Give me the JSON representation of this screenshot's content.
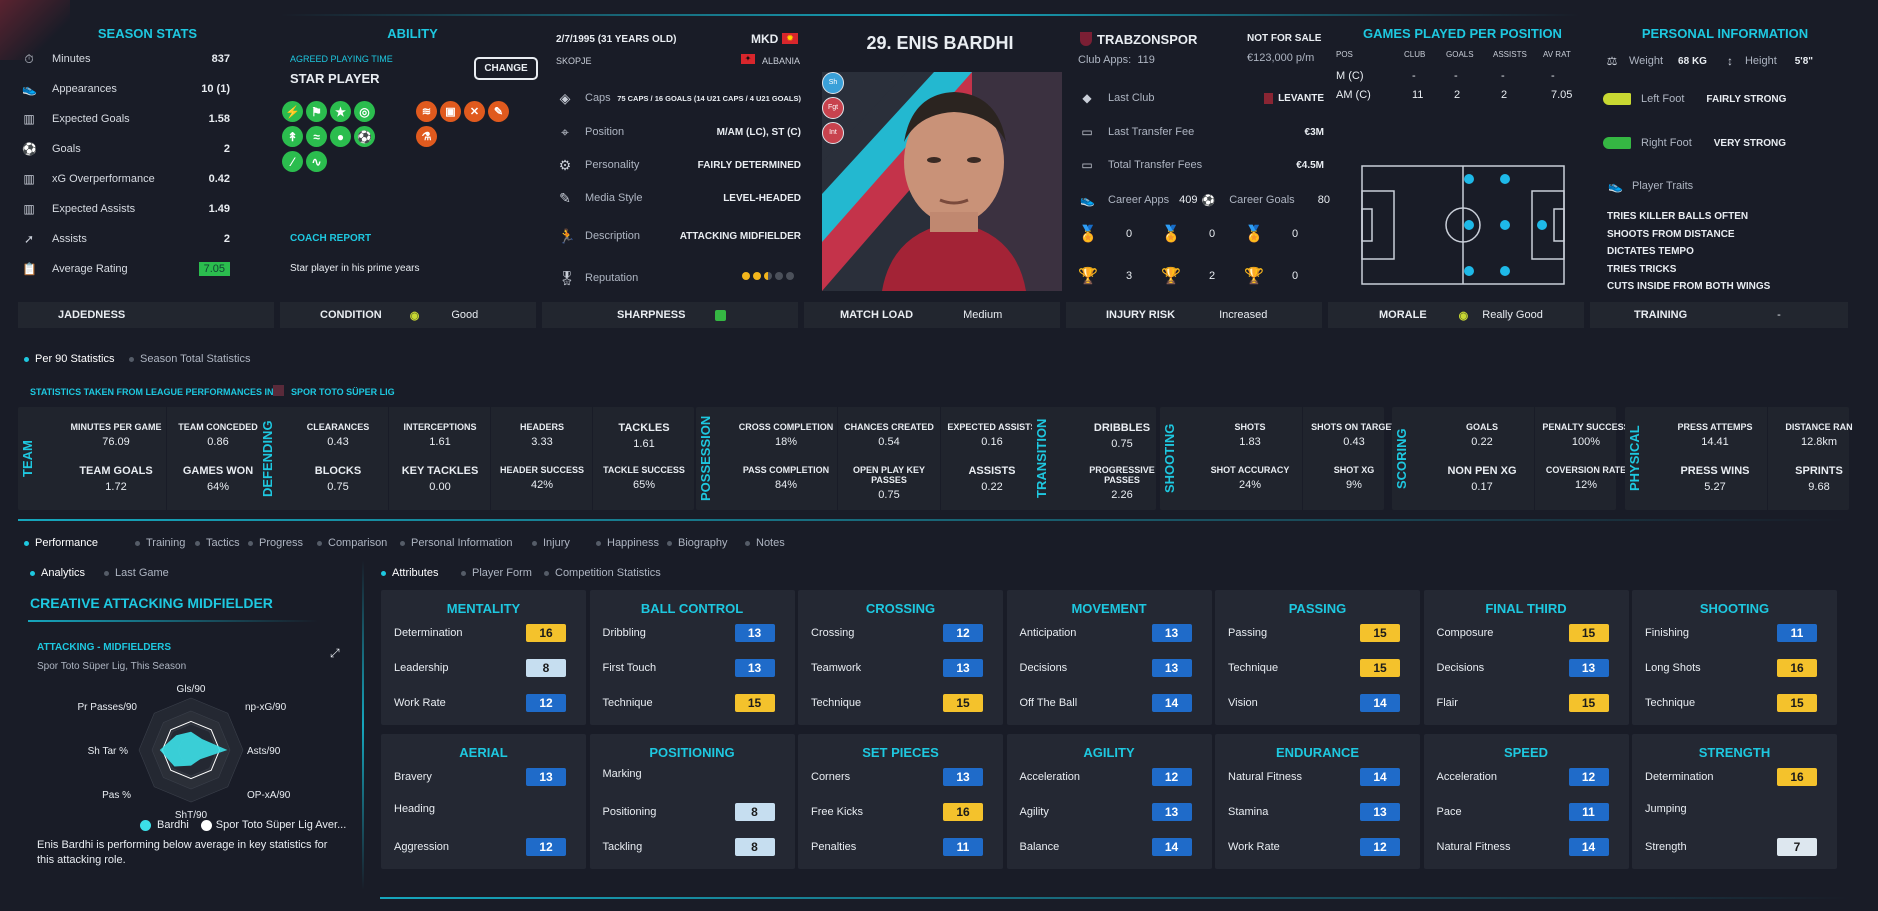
{
  "season_stats": {
    "title": "SEASON STATS",
    "rows": [
      {
        "label": "Minutes",
        "value": "837",
        "icon": "stopwatch-icon"
      },
      {
        "label": "Appearances",
        "value": "10 (1)",
        "icon": "boot-icon"
      },
      {
        "label": "Expected Goals",
        "value": "1.58",
        "icon": "chart-icon"
      },
      {
        "label": "Goals",
        "value": "2",
        "icon": "ball-icon"
      },
      {
        "label": "xG Overperformance",
        "value": "0.42",
        "icon": "chart-icon"
      },
      {
        "label": "Expected Assists",
        "value": "1.49",
        "icon": "chart-icon"
      },
      {
        "label": "Assists",
        "value": "2",
        "icon": "assist-icon"
      },
      {
        "label": "Average Rating",
        "value": "7.05",
        "icon": "clipboard-icon"
      }
    ]
  },
  "ability": {
    "title": "ABILITY",
    "agreed_label": "AGREED PLAYING TIME",
    "playing_time": "STAR PLAYER",
    "change": "CHANGE",
    "coach_report_title": "COACH REPORT",
    "coach_report": "Star player in his prime years"
  },
  "bio": {
    "dob": "2/7/1995 (31 YEARS OLD)",
    "nation": "MKD",
    "city": "SKOPJE",
    "second_nation": "ALBANIA",
    "rows": [
      {
        "label": "Caps",
        "value": "75 CAPS / 16 GOALS (14 U21 CAPS / 4 U21 GOALS)",
        "icon": "caps-icon"
      },
      {
        "label": "Position",
        "value": "M/AM (LC), ST (C)",
        "icon": "position-icon"
      },
      {
        "label": "Personality",
        "value": "FAIRLY DETERMINED",
        "icon": "personality-icon"
      },
      {
        "label": "Media Style",
        "value": "LEVEL-HEADED",
        "icon": "media-icon"
      },
      {
        "label": "Description",
        "value": "ATTACKING MIDFIELDER",
        "icon": "runner-icon"
      },
      {
        "label": "Reputation",
        "value": "",
        "icon": "ribbon-icon"
      }
    ],
    "reputation_stars": 2.5,
    "reputation_max": 5
  },
  "player": {
    "name": "29. ENIS BARDHI",
    "roles": [
      "Sh",
      "Fgt",
      "Int"
    ]
  },
  "club": {
    "name": "TRABZONSPOR",
    "apps_label": "Club Apps:",
    "apps": "119",
    "status": "NOT FOR SALE",
    "value": "€123,000 p/m",
    "rows": [
      {
        "label": "Last Club",
        "value": "LEVANTE"
      },
      {
        "label": "Last Transfer Fee",
        "value": "€3M"
      },
      {
        "label": "Total Transfer Fees",
        "value": "€4.5M"
      }
    ],
    "career_apps_label": "Career Apps",
    "career_apps": "409",
    "career_goals_label": "Career Goals",
    "career_goals": "80",
    "medals": [
      "0",
      "0",
      "0"
    ],
    "trophies": [
      "3",
      "2",
      "0"
    ]
  },
  "games_per_position": {
    "title": "GAMES PLAYED PER POSITION",
    "headers": [
      "POS",
      "CLUB",
      "GOALS",
      "ASSISTS",
      "AV RAT"
    ],
    "rows": [
      [
        "M (C)",
        "-",
        "-",
        "-",
        "-"
      ],
      [
        "AM (C)",
        "11",
        "2",
        "2",
        "7.05"
      ]
    ]
  },
  "personal": {
    "title": "PERSONAL INFORMATION",
    "weight_label": "Weight",
    "weight": "68 KG",
    "height_label": "Height",
    "height": "5'8\"",
    "left_foot_label": "Left Foot",
    "left_foot": "FAIRLY STRONG",
    "right_foot_label": "Right Foot",
    "right_foot": "VERY STRONG",
    "traits_title": "Player Traits",
    "traits": [
      "TRIES KILLER BALLS OFTEN",
      "SHOOTS FROM DISTANCE",
      "DICTATES TEMPO",
      "TRIES TRICKS",
      "CUTS INSIDE FROM BOTH WINGS"
    ]
  },
  "status_bar": {
    "jadedness": "JADEDNESS",
    "condition": "CONDITION",
    "condition_val": "Good",
    "sharpness": "SHARPNESS",
    "match_load": "MATCH LOAD",
    "match_load_val": "Medium",
    "injury_risk": "INJURY RISK",
    "injury_risk_val": "Increased",
    "morale": "MORALE",
    "morale_val": "Really Good",
    "training": "TRAINING",
    "training_val": "-"
  },
  "stats_toggle": {
    "per90": "Per 90 Statistics",
    "season": "Season Total Statistics",
    "note": "STATISTICS TAKEN FROM LEAGUE PERFORMANCES IN:",
    "league": "SPOR TOTO SÜPER LIG"
  },
  "stat_groups": {
    "team": {
      "label": "TEAM",
      "cells": [
        {
          "l": "MINUTES PER GAME",
          "v": "76.09"
        },
        {
          "l": "TEAM CONCEDED",
          "v": "0.86"
        },
        {
          "l": "TEAM GOALS",
          "v": "1.72"
        },
        {
          "l": "GAMES WON",
          "v": "64%"
        }
      ]
    },
    "defending": {
      "label": "DEFENDING",
      "cells": [
        {
          "l": "CLEARANCES",
          "v": "0.43"
        },
        {
          "l": "INTERCEPTIONS",
          "v": "1.61"
        },
        {
          "l": "HEADERS",
          "v": "3.33"
        },
        {
          "l": "TACKLES",
          "v": "1.61"
        },
        {
          "l": "BLOCKS",
          "v": "0.75"
        },
        {
          "l": "KEY TACKLES",
          "v": "0.00"
        },
        {
          "l": "HEADER SUCCESS",
          "v": "42%"
        },
        {
          "l": "TACKLE SUCCESS",
          "v": "65%"
        }
      ]
    },
    "possession": {
      "label": "POSSESSION",
      "cells": [
        {
          "l": "CROSS COMPLETION",
          "v": "18%"
        },
        {
          "l": "CHANCES CREATED",
          "v": "0.54"
        },
        {
          "l": "EXPECTED ASSISTS",
          "v": "0.16"
        },
        {
          "l": "PASS COMPLETION",
          "v": "84%"
        },
        {
          "l": "OPEN PLAY KEY PASSES",
          "v": "0.75"
        },
        {
          "l": "ASSISTS",
          "v": "0.22"
        }
      ]
    },
    "transition": {
      "label": "TRANSITION",
      "cells": [
        {
          "l": "DRIBBLES",
          "v": "0.75"
        },
        {
          "l": "PROGRESSIVE PASSES",
          "v": "2.26"
        }
      ]
    },
    "shooting": {
      "label": "SHOOTING",
      "cells": [
        {
          "l": "SHOTS",
          "v": "1.83"
        },
        {
          "l": "SHOTS ON TARGET",
          "v": "0.43"
        },
        {
          "l": "SHOT ACCURACY",
          "v": "24%"
        },
        {
          "l": "SHOT XG",
          "v": "9%"
        }
      ]
    },
    "scoring": {
      "label": "SCORING",
      "cells": [
        {
          "l": "GOALS",
          "v": "0.22"
        },
        {
          "l": "PENALTY SUCCESS",
          "v": "100%"
        },
        {
          "l": "NON PEN XG",
          "v": "0.17"
        },
        {
          "l": "COVERSION RATE",
          "v": "12%"
        }
      ]
    },
    "physical": {
      "label": "PHYSICAL",
      "cells": [
        {
          "l": "PRESS ATTEMPS",
          "v": "14.41"
        },
        {
          "l": "DISTANCE RAN",
          "v": "12.8km"
        },
        {
          "l": "PRESS WINS",
          "v": "5.27"
        },
        {
          "l": "SPRINTS",
          "v": "9.68"
        }
      ]
    }
  },
  "tabs": [
    "Performance",
    "Training",
    "Tactics",
    "Progress",
    "Comparison",
    "Personal Information",
    "Injury",
    "Happiness",
    "Biography",
    "Notes"
  ],
  "subtabs_left": [
    "Analytics",
    "Last Game"
  ],
  "subtabs_right": [
    "Attributes",
    "Player Form",
    "Competition Statistics"
  ],
  "analytics": {
    "role": "CREATIVE ATTACKING MIDFIELDER",
    "group": "ATTACKING - MIDFIELDERS",
    "context": "Spor Toto Süper Lig, This Season",
    "axes": [
      "Gls/90",
      "np-xG/90",
      "Asts/90",
      "OP-xA/90",
      "ShT/90",
      "Pas %",
      "Sh Tar %",
      "Pr Passes/90"
    ],
    "legend_player": "Bardhi",
    "legend_avg": "Spor Toto Süper Lig Aver...",
    "summary": "Enis Bardhi is performing below average in key statistics for this attacking role."
  },
  "attributes": [
    {
      "title": "MENTALITY",
      "rows": [
        [
          "Determination",
          "16",
          "gold"
        ],
        [
          "Leadership",
          "8",
          "light"
        ],
        [
          "Work Rate",
          "12",
          "blue"
        ]
      ]
    },
    {
      "title": "BALL CONTROL",
      "rows": [
        [
          "Dribbling",
          "13",
          "blue"
        ],
        [
          "First Touch",
          "13",
          "blue"
        ],
        [
          "Technique",
          "15",
          "gold"
        ]
      ]
    },
    {
      "title": "CROSSING",
      "rows": [
        [
          "Crossing",
          "12",
          "blue"
        ],
        [
          "Teamwork",
          "13",
          "blue"
        ],
        [
          "Technique",
          "15",
          "gold"
        ]
      ]
    },
    {
      "title": "MOVEMENT",
      "rows": [
        [
          "Anticipation",
          "13",
          "blue"
        ],
        [
          "Decisions",
          "13",
          "blue"
        ],
        [
          "Off The Ball",
          "14",
          "blue"
        ]
      ]
    },
    {
      "title": "PASSING",
      "rows": [
        [
          "Passing",
          "15",
          "gold"
        ],
        [
          "Technique",
          "15",
          "gold"
        ],
        [
          "Vision",
          "14",
          "blue"
        ]
      ]
    },
    {
      "title": "FINAL THIRD",
      "rows": [
        [
          "Composure",
          "15",
          "gold"
        ],
        [
          "Decisions",
          "13",
          "blue"
        ],
        [
          "Flair",
          "15",
          "gold"
        ]
      ]
    },
    {
      "title": "SHOOTING",
      "rows": [
        [
          "Finishing",
          "11",
          "blue"
        ],
        [
          "Long Shots",
          "16",
          "gold"
        ],
        [
          "Technique",
          "15",
          "gold"
        ]
      ]
    },
    {
      "title": "AERIAL",
      "rows": [
        [
          "Bravery",
          "13",
          "blue"
        ],
        [
          "Heading",
          "",
          ""
        ],
        [
          "Aggression",
          "12",
          "blue"
        ]
      ]
    },
    {
      "title": "POSITIONING",
      "rows": [
        [
          "Marking",
          "",
          ""
        ],
        [
          "Positioning",
          "8",
          "light"
        ],
        [
          "Tackling",
          "8",
          "light"
        ]
      ]
    },
    {
      "title": "SET PIECES",
      "rows": [
        [
          "Corners",
          "13",
          "blue"
        ],
        [
          "Free Kicks",
          "16",
          "gold"
        ],
        [
          "Penalties",
          "11",
          "blue"
        ]
      ]
    },
    {
      "title": "AGILITY",
      "rows": [
        [
          "Acceleration",
          "12",
          "blue"
        ],
        [
          "Agility",
          "13",
          "blue"
        ],
        [
          "Balance",
          "14",
          "blue"
        ]
      ]
    },
    {
      "title": "ENDURANCE",
      "rows": [
        [
          "Natural Fitness",
          "14",
          "blue"
        ],
        [
          "Stamina",
          "13",
          "blue"
        ],
        [
          "Work Rate",
          "12",
          "blue"
        ]
      ]
    },
    {
      "title": "SPEED",
      "rows": [
        [
          "Acceleration",
          "12",
          "blue"
        ],
        [
          "Pace",
          "11",
          "blue"
        ],
        [
          "Natural Fitness",
          "14",
          "blue"
        ]
      ]
    },
    {
      "title": "STRENGTH",
      "rows": [
        [
          "Determination",
          "16",
          "gold"
        ],
        [
          "Jumping",
          "",
          ""
        ],
        [
          "Strength",
          "7",
          "white"
        ]
      ]
    }
  ]
}
